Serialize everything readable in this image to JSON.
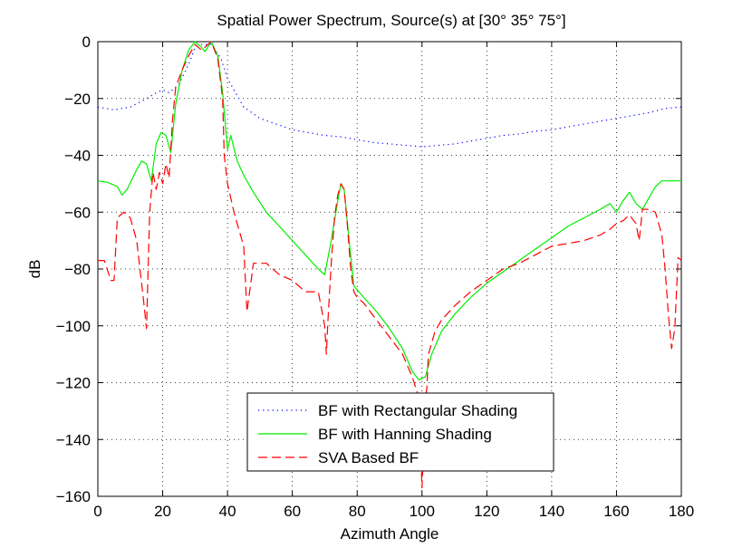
{
  "chart_data": {
    "type": "line",
    "title": "Spatial Power Spectrum, Source(s) at [30°  35°  75°]",
    "xlabel": "Azimuth Angle",
    "ylabel": "dB",
    "xlim": [
      0,
      180
    ],
    "ylim": [
      -160,
      0
    ],
    "xticks": [
      0,
      20,
      40,
      60,
      80,
      100,
      120,
      140,
      160,
      180
    ],
    "yticks": [
      0,
      -20,
      -40,
      -60,
      -80,
      -100,
      -120,
      -140,
      -160
    ],
    "xtick_labels": [
      "0",
      "20",
      "40",
      "60",
      "80",
      "100",
      "120",
      "140",
      "160",
      "180"
    ],
    "ytick_labels": [
      "0",
      "−20",
      "−40",
      "−60",
      "−80",
      "−100",
      "−120",
      "−140",
      "−160"
    ],
    "grid": true,
    "legend_position": "bottom-center",
    "series": [
      {
        "name": "BF with Rectangular Shading",
        "color": "#0000ff",
        "style": "dotted",
        "x": [
          0,
          5,
          10,
          15,
          18,
          20,
          22,
          25,
          28,
          30,
          32,
          35,
          38,
          40,
          45,
          50,
          55,
          60,
          65,
          70,
          75,
          80,
          85,
          90,
          95,
          100,
          105,
          110,
          115,
          120,
          125,
          130,
          135,
          140,
          145,
          150,
          155,
          160,
          165,
          170,
          175,
          180
        ],
        "y": [
          -23,
          -24,
          -23,
          -20,
          -18,
          -17,
          -18,
          -15,
          -8,
          -2,
          -1,
          -1,
          -6,
          -13,
          -23,
          -27,
          -29,
          -31,
          -32,
          -33,
          -33.5,
          -34.5,
          -35.5,
          -36,
          -36.5,
          -37,
          -36.5,
          -36,
          -35,
          -34,
          -33,
          -32.5,
          -31.5,
          -31,
          -30,
          -29,
          -28,
          -27,
          -26,
          -25,
          -23.5,
          -23
        ]
      },
      {
        "name": "BF with Hanning Shading",
        "color": "#00ee00",
        "style": "solid",
        "x": [
          0,
          3,
          6,
          7.5,
          9,
          12,
          13.5,
          15,
          16.5,
          18,
          19.5,
          21,
          22.5,
          24,
          26,
          28,
          30,
          32,
          33,
          35,
          37,
          38.5,
          40,
          41,
          43,
          45,
          48,
          52,
          56,
          60,
          64,
          68,
          70,
          72,
          74,
          75,
          76,
          77.5,
          79,
          82,
          86,
          90,
          94,
          97,
          99,
          101,
          103,
          106,
          110,
          115,
          120,
          125,
          130,
          135,
          140,
          145,
          150,
          155,
          158,
          160,
          162,
          164,
          166,
          168,
          170,
          172,
          174,
          176,
          178,
          180
        ],
        "y": [
          -49,
          -49.5,
          -51,
          -54,
          -52,
          -45,
          -42,
          -43,
          -49,
          -36,
          -32,
          -33,
          -39,
          -22,
          -10,
          -3,
          0,
          -2,
          -3.5,
          0,
          -5,
          -18,
          -38,
          -33,
          -42,
          -47,
          -53,
          -60,
          -65,
          -70,
          -75,
          -80,
          -82,
          -70,
          -56,
          -50,
          -52,
          -70,
          -86,
          -90,
          -95,
          -101,
          -108,
          -116,
          -119,
          -118,
          -110,
          -102,
          -96,
          -90,
          -85,
          -81,
          -77,
          -73,
          -69,
          -65,
          -62,
          -59,
          -57,
          -60,
          -56,
          -53,
          -57,
          -59,
          -55,
          -51,
          -49,
          -49,
          -49,
          -49
        ]
      },
      {
        "name": "SVA Based BF",
        "color": "#ff0000",
        "style": "dashed",
        "x": [
          0,
          2,
          4,
          5,
          6,
          8,
          10,
          12,
          14,
          15,
          16,
          17,
          18,
          19,
          20,
          21,
          22,
          23,
          24,
          26,
          28,
          30,
          32,
          34,
          35,
          37,
          38.5,
          39,
          40,
          41,
          42,
          43,
          44,
          45,
          46,
          48,
          52,
          56,
          60,
          64,
          68,
          70,
          70.5,
          71,
          72,
          73,
          74,
          75,
          76,
          77,
          78,
          79,
          80,
          82,
          86,
          90,
          94,
          97,
          99,
          100,
          101,
          101.5,
          102,
          103,
          104,
          106,
          110,
          115,
          120,
          125,
          130,
          135,
          140,
          145,
          150,
          155,
          158,
          160,
          162,
          164,
          166,
          167,
          168,
          170,
          172,
          174,
          175,
          176,
          177,
          178,
          179,
          180
        ],
        "y": [
          -77,
          -77,
          -84,
          -84,
          -62,
          -60,
          -62,
          -70,
          -90,
          -101,
          -60,
          -46,
          -52,
          -46,
          -50,
          -43,
          -48,
          -28,
          -16,
          -10,
          -5,
          -1,
          -3,
          -1,
          0,
          -6,
          -20,
          -40,
          -50,
          -55,
          -60,
          -64,
          -68,
          -72,
          -95,
          -78,
          -78,
          -82,
          -84,
          -88,
          -88,
          -100,
          -110,
          -98,
          -78,
          -62,
          -54,
          -50,
          -52,
          -65,
          -80,
          -88,
          -90,
          -92,
          -98,
          -104,
          -110,
          -118,
          -125,
          -157,
          -126,
          -122,
          -110,
          -106,
          -102,
          -98,
          -93,
          -88,
          -84,
          -80,
          -78,
          -75,
          -72,
          -71,
          -70,
          -68,
          -66,
          -64,
          -63,
          -61,
          -64,
          -70,
          -59,
          -59,
          -60,
          -68,
          -80,
          -96,
          -108,
          -101,
          -76,
          -77
        ]
      }
    ]
  }
}
